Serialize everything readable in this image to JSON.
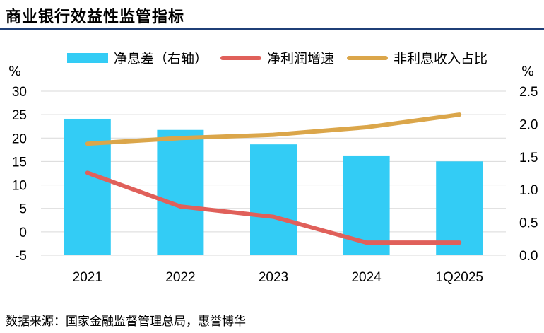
{
  "title": "商业银行效益性监管指标",
  "source": "数据来源：国家金融监督管理总局，惠誉博华",
  "units": {
    "left": "%",
    "right": "%"
  },
  "colors": {
    "bar": "#33ccf5",
    "profit": "#e0605a",
    "nonint": "#dba64a",
    "grid": "#d9d9d9"
  },
  "chart_data": {
    "type": "bar",
    "categories": [
      "2021",
      "2022",
      "2023",
      "2024",
      "1Q2025"
    ],
    "left_axis": {
      "ylim": [
        -5,
        30
      ],
      "ticks": [
        "-5",
        "0",
        "5",
        "10",
        "15",
        "20",
        "25",
        "30"
      ]
    },
    "right_axis": {
      "ylim": [
        0,
        2.5
      ],
      "ticks": [
        "0.0",
        "0.5",
        "1.0",
        "1.5",
        "2.0",
        "2.5"
      ]
    },
    "grid": true,
    "legend_position": "top",
    "series": [
      {
        "name": "净息差（右轴）",
        "type": "bar",
        "axis": "right",
        "values": [
          2.08,
          1.91,
          1.69,
          1.52,
          1.43
        ]
      },
      {
        "name": "净利润增速",
        "type": "line",
        "axis": "left",
        "values": [
          12.6,
          5.4,
          3.2,
          -2.3,
          -2.3
        ]
      },
      {
        "name": "非利息收入占比",
        "type": "line",
        "axis": "left",
        "values": [
          18.8,
          20.0,
          20.7,
          22.3,
          25.0
        ]
      }
    ]
  }
}
